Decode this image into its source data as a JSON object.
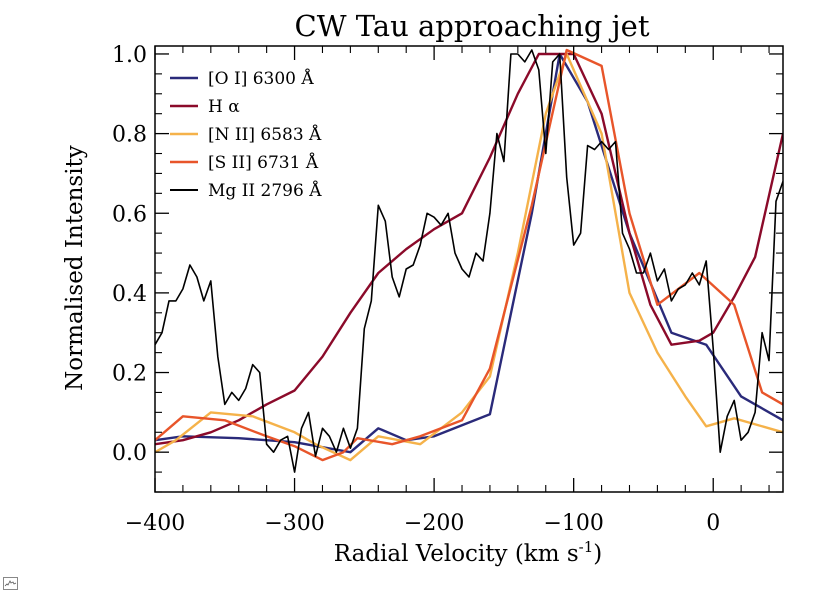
{
  "chart_data": {
    "type": "line",
    "title": "CW Tau approaching jet",
    "xlabel": "Radial Velocity (km s",
    "xlabel_sup": "-1",
    "xlabel_end": ")",
    "ylabel": "Normalised Intensity",
    "xlim": [
      -400,
      50
    ],
    "ylim": [
      -0.1,
      1.02
    ],
    "xticks": [
      -400,
      -300,
      -200,
      -100,
      0
    ],
    "xtick_labels": [
      "−400",
      "−300",
      "−200",
      "−100",
      "0"
    ],
    "yticks": [
      0.0,
      0.2,
      0.4,
      0.6,
      0.8,
      1.0
    ],
    "ytick_labels": [
      "0.0",
      "0.2",
      "0.4",
      "0.6",
      "0.8",
      "1.0"
    ],
    "legend_position": "top-left",
    "series": [
      {
        "name": "[O I] 6300 Å",
        "color": "#2a2a7a",
        "x": [
          -400,
          -380,
          -340,
          -300,
          -260,
          -240,
          -220,
          -200,
          -160,
          -130,
          -110,
          -90,
          -60,
          -30,
          -5,
          20,
          50
        ],
        "y": [
          0.03,
          0.04,
          0.035,
          0.025,
          0.0,
          0.06,
          0.03,
          0.04,
          0.095,
          0.6,
          1.0,
          0.88,
          0.55,
          0.3,
          0.27,
          0.14,
          0.08
        ]
      },
      {
        "name": "H α",
        "color": "#8b0a2a",
        "x": [
          -400,
          -380,
          -360,
          -340,
          -320,
          -300,
          -280,
          -260,
          -240,
          -220,
          -200,
          -180,
          -160,
          -140,
          -125,
          -110,
          -100,
          -80,
          -60,
          -45,
          -30,
          -10,
          0,
          15,
          30,
          50
        ],
        "y": [
          0.02,
          0.03,
          0.05,
          0.08,
          0.12,
          0.155,
          0.24,
          0.35,
          0.45,
          0.51,
          0.56,
          0.6,
          0.74,
          0.9,
          1.0,
          1.0,
          1.0,
          0.85,
          0.55,
          0.37,
          0.27,
          0.28,
          0.3,
          0.39,
          0.49,
          0.8
        ]
      },
      {
        "name": "[N II] 6583 Å",
        "color": "#f5b24a",
        "x": [
          -400,
          -385,
          -360,
          -330,
          -300,
          -285,
          -260,
          -240,
          -210,
          -180,
          -160,
          -140,
          -120,
          -105,
          -80,
          -60,
          -40,
          -20,
          -5,
          15,
          50
        ],
        "y": [
          0.0,
          0.03,
          0.1,
          0.09,
          0.05,
          0.02,
          -0.02,
          0.04,
          0.02,
          0.1,
          0.19,
          0.5,
          0.85,
          1.0,
          0.8,
          0.4,
          0.25,
          0.14,
          0.065,
          0.085,
          0.05
        ]
      },
      {
        "name": "[S II] 6731 Å",
        "color": "#e8552a",
        "x": [
          -400,
          -380,
          -350,
          -320,
          -300,
          -280,
          -265,
          -255,
          -230,
          -210,
          -180,
          -160,
          -130,
          -105,
          -80,
          -60,
          -40,
          -10,
          15,
          35,
          50
        ],
        "y": [
          0.03,
          0.09,
          0.08,
          0.04,
          0.015,
          -0.02,
          0.0,
          0.035,
          0.02,
          0.04,
          0.08,
          0.21,
          0.62,
          1.01,
          0.97,
          0.6,
          0.37,
          0.45,
          0.37,
          0.15,
          0.12
        ]
      },
      {
        "name": "Mg II 2796 Å",
        "color": "#000000",
        "x": [
          -400,
          -395,
          -390,
          -385,
          -380,
          -375,
          -370,
          -365,
          -360,
          -355,
          -350,
          -345,
          -340,
          -335,
          -330,
          -325,
          -320,
          -315,
          -310,
          -305,
          -300,
          -295,
          -290,
          -285,
          -280,
          -275,
          -270,
          -265,
          -260,
          -255,
          -250,
          -245,
          -240,
          -235,
          -230,
          -225,
          -220,
          -215,
          -210,
          -205,
          -200,
          -195,
          -190,
          -185,
          -180,
          -175,
          -170,
          -165,
          -160,
          -155,
          -150,
          -145,
          -140,
          -135,
          -130,
          -125,
          -120,
          -115,
          -110,
          -105,
          -100,
          -95,
          -90,
          -85,
          -80,
          -75,
          -70,
          -65,
          -60,
          -55,
          -50,
          -45,
          -40,
          -35,
          -30,
          -25,
          -20,
          -15,
          -10,
          -5,
          0,
          5,
          10,
          15,
          20,
          25,
          30,
          35,
          40,
          45,
          50
        ],
        "y": [
          0.27,
          0.3,
          0.38,
          0.38,
          0.41,
          0.47,
          0.44,
          0.38,
          0.43,
          0.24,
          0.12,
          0.15,
          0.13,
          0.16,
          0.22,
          0.2,
          0.02,
          0.0,
          0.03,
          0.04,
          -0.05,
          0.06,
          0.1,
          -0.01,
          0.06,
          0.04,
          0.0,
          0.06,
          0.01,
          0.06,
          0.31,
          0.38,
          0.62,
          0.58,
          0.44,
          0.39,
          0.46,
          0.47,
          0.52,
          0.6,
          0.59,
          0.57,
          0.6,
          0.5,
          0.46,
          0.44,
          0.5,
          0.48,
          0.6,
          0.8,
          0.73,
          1.0,
          1.0,
          0.98,
          1.01,
          0.96,
          0.75,
          0.98,
          1.0,
          0.69,
          0.52,
          0.55,
          0.77,
          0.76,
          0.78,
          0.76,
          0.78,
          0.55,
          0.51,
          0.45,
          0.45,
          0.5,
          0.43,
          0.46,
          0.38,
          0.41,
          0.42,
          0.45,
          0.42,
          0.48,
          0.26,
          0.0,
          0.09,
          0.13,
          0.03,
          0.05,
          0.1,
          0.3,
          0.23,
          0.63,
          0.68
        ]
      }
    ]
  }
}
